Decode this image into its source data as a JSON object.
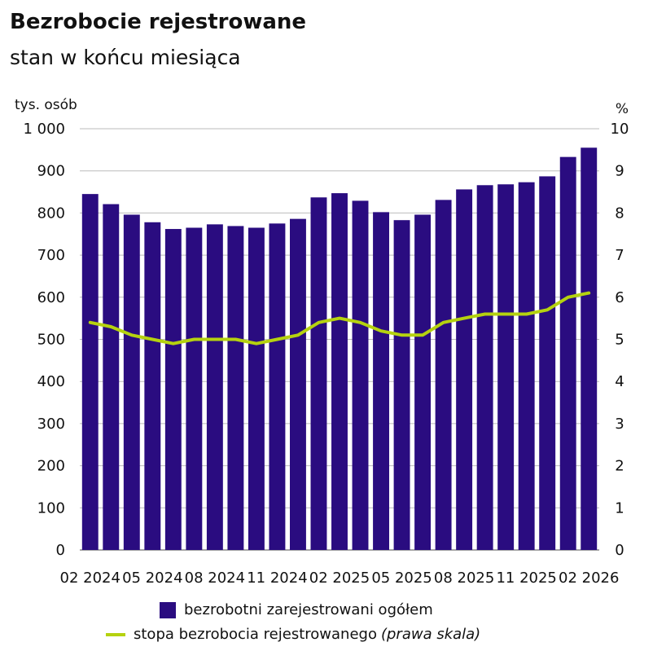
{
  "title": "Bezrobocie rejestrowane",
  "subtitle": "stan w końcu miesiąca",
  "chart_data": {
    "type": "bar+line",
    "categories": [
      "02 2024",
      "03 2024",
      "04 2024",
      "05 2024",
      "06 2024",
      "07 2024",
      "08 2024",
      "09 2024",
      "10 2024",
      "11 2024",
      "12 2024",
      "01 2025",
      "02 2025",
      "03 2025",
      "04 2025",
      "05 2025",
      "06 2025",
      "07 2025",
      "08 2025",
      "09 2025",
      "10 2025",
      "11 2025",
      "12 2025",
      "01 2026",
      "02 2026"
    ],
    "x_tick_labels": [
      "02 2024",
      "05 2024",
      "08 2024",
      "11 2024",
      "02 2025",
      "05 2025",
      "08 2025",
      "11 2025",
      "02 2026"
    ],
    "series": [
      {
        "name": "bezrobotni zarejestrowani ogółem",
        "type": "bar",
        "axis": "left",
        "color": "#2a0c80",
        "values": [
          845,
          821,
          796,
          778,
          762,
          765,
          773,
          769,
          765,
          775,
          786,
          837,
          847,
          829,
          802,
          783,
          796,
          831,
          856,
          866,
          868,
          873,
          887,
          933,
          955
        ]
      },
      {
        "name": "stopa bezrobocia rejestrowanego",
        "name_note": "(prawa skala)",
        "type": "line",
        "axis": "right",
        "color": "#b5d20f",
        "values": [
          5.4,
          5.3,
          5.1,
          5.0,
          4.9,
          5.0,
          5.0,
          5.0,
          4.9,
          5.0,
          5.1,
          5.4,
          5.5,
          5.4,
          5.2,
          5.1,
          5.1,
          5.4,
          5.5,
          5.6,
          5.6,
          5.6,
          5.7,
          6.0,
          6.1
        ]
      }
    ],
    "y_left": {
      "label": "tys. osób",
      "ylim": [
        0,
        1000
      ],
      "ticks": [
        "0",
        "100",
        "200",
        "300",
        "400",
        "500",
        "600",
        "700",
        "800",
        "900",
        "1 000"
      ]
    },
    "y_right": {
      "label": "%",
      "ylim": [
        0,
        10
      ],
      "ticks": [
        "0",
        "1",
        "2",
        "3",
        "4",
        "5",
        "6",
        "7",
        "8",
        "9",
        "10"
      ]
    },
    "grid": true,
    "legend_position": "bottom"
  }
}
